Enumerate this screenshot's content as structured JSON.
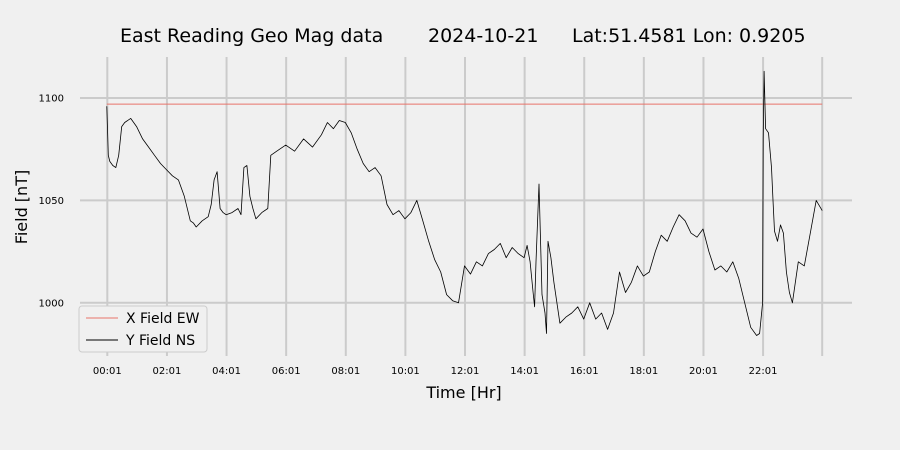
{
  "chart_data": {
    "type": "line",
    "title_parts": [
      "East Reading Geo Mag data",
      "2024-10-21",
      "Lat:51.4581  Lon: 0.9205"
    ],
    "xlabel": "Time  [Hr]",
    "ylabel": "Field  [nT]",
    "x_unit": "hours",
    "xlim": [
      -0.9,
      25
    ],
    "ylim": [
      974,
      1120
    ],
    "x_ticks": [
      0.0167,
      2.0167,
      4.0167,
      6.0167,
      8.0167,
      10.0167,
      12.0167,
      14.0167,
      16.0167,
      18.0167,
      20.0167,
      22.0167,
      24.0
    ],
    "x_tick_labels": [
      "00:01",
      "02:01",
      "04:01",
      "06:01",
      "08:01",
      "10:01",
      "12:01",
      "14:01",
      "16:01",
      "18:01",
      "20:01",
      "22:01",
      ""
    ],
    "y_ticks": [
      1000,
      1050,
      1100
    ],
    "y_tick_labels": [
      "1000",
      "1050",
      "1100"
    ],
    "grid": true,
    "legend_position": "lower-left",
    "series": [
      {
        "name": "X Field EW",
        "color": "#e8736a",
        "x": [
          0.0,
          24.0
        ],
        "y": [
          1097,
          1097
        ]
      },
      {
        "name": "Y Field NS",
        "color": "#000000",
        "x": [
          0.0,
          0.05,
          0.1,
          0.2,
          0.3,
          0.4,
          0.5,
          0.6,
          0.8,
          1.0,
          1.2,
          1.4,
          1.6,
          1.8,
          2.0,
          2.2,
          2.4,
          2.6,
          2.8,
          2.9,
          3.0,
          3.2,
          3.4,
          3.5,
          3.6,
          3.7,
          3.8,
          3.9,
          4.0,
          4.2,
          4.4,
          4.5,
          4.6,
          4.7,
          4.8,
          4.9,
          5.0,
          5.2,
          5.4,
          5.5,
          5.7,
          6.0,
          6.3,
          6.6,
          6.9,
          7.2,
          7.4,
          7.6,
          7.8,
          8.0,
          8.2,
          8.4,
          8.6,
          8.8,
          9.0,
          9.2,
          9.4,
          9.6,
          9.8,
          10.0,
          10.2,
          10.4,
          10.6,
          10.8,
          11.0,
          11.2,
          11.4,
          11.6,
          11.8,
          12.0,
          12.2,
          12.4,
          12.6,
          12.8,
          13.0,
          13.2,
          13.4,
          13.6,
          13.8,
          14.0,
          14.1,
          14.2,
          14.3,
          14.35,
          14.4,
          14.5,
          14.6,
          14.7,
          14.75,
          14.8,
          14.9,
          15.0,
          15.2,
          15.4,
          15.6,
          15.8,
          16.0,
          16.2,
          16.4,
          16.6,
          16.8,
          17.0,
          17.2,
          17.4,
          17.6,
          17.8,
          18.0,
          18.2,
          18.4,
          18.6,
          18.8,
          19.0,
          19.2,
          19.4,
          19.6,
          19.8,
          20.0,
          20.2,
          20.4,
          20.6,
          20.8,
          21.0,
          21.2,
          21.4,
          21.6,
          21.8,
          21.9,
          22.0,
          22.02,
          22.05,
          22.1,
          22.2,
          22.3,
          22.35,
          22.4,
          22.5,
          22.6,
          22.7,
          22.8,
          22.9,
          23.0,
          23.2,
          23.4,
          23.6,
          23.8,
          24.0
        ],
        "y": [
          1096,
          1072,
          1069,
          1067,
          1066,
          1072,
          1086,
          1088,
          1090,
          1086,
          1080,
          1076,
          1072,
          1068,
          1065,
          1062,
          1060,
          1052,
          1040,
          1039,
          1037,
          1040,
          1042,
          1048,
          1060,
          1064,
          1046,
          1044,
          1043,
          1044,
          1046,
          1043,
          1066,
          1067,
          1052,
          1046,
          1041,
          1044,
          1046,
          1072,
          1074,
          1077,
          1074,
          1080,
          1076,
          1082,
          1088,
          1085,
          1089,
          1088,
          1083,
          1075,
          1068,
          1064,
          1066,
          1062,
          1048,
          1043,
          1045,
          1041,
          1044,
          1050,
          1040,
          1030,
          1021,
          1015,
          1004,
          1001,
          1000,
          1018,
          1014,
          1020,
          1018,
          1024,
          1026,
          1029,
          1022,
          1027,
          1024,
          1022,
          1028,
          1020,
          1005,
          998,
          1020,
          1058,
          1004,
          995,
          985,
          1030,
          1022,
          1010,
          990,
          993,
          995,
          998,
          992,
          1000,
          992,
          995,
          987,
          995,
          1015,
          1005,
          1010,
          1018,
          1013,
          1015,
          1025,
          1033,
          1030,
          1037,
          1043,
          1040,
          1034,
          1032,
          1036,
          1025,
          1016,
          1018,
          1015,
          1020,
          1012,
          1000,
          988,
          984,
          985,
          1000,
          1080,
          1113,
          1085,
          1083,
          1066,
          1050,
          1035,
          1030,
          1038,
          1034,
          1015,
          1005,
          1000,
          1020,
          1018,
          1034,
          1050,
          1045
        ]
      }
    ]
  }
}
